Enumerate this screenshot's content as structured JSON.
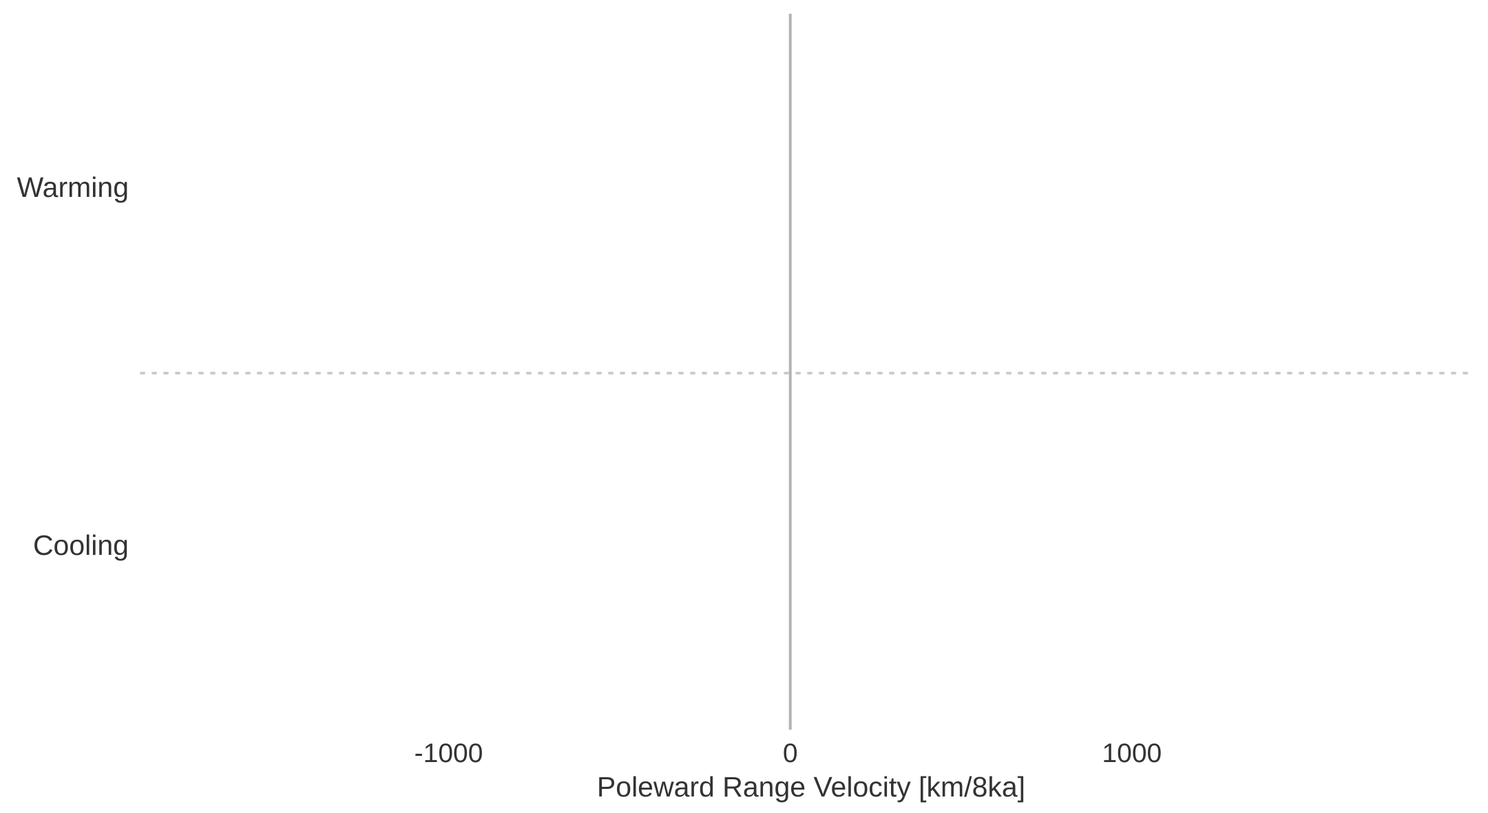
{
  "chart_data": {
    "type": "bar",
    "orientation": "horizontal",
    "categories": [
      "Warming",
      "Cooling"
    ],
    "series": [
      {
        "values": [
          0,
          0
        ]
      }
    ],
    "xlabel": "Poleward Range Velocity [km/8ka]",
    "ylabel": "",
    "xlim": [
      -1900,
      2000
    ],
    "xticks": [
      -1000,
      0,
      1000
    ],
    "xtick_labels": [
      "-1000",
      "0",
      "1000"
    ],
    "reference_line_x": 0,
    "category_separator": "dotted",
    "grid": false,
    "colors": {
      "text": "#333333",
      "zero_line": "#b3b3b3",
      "separator": "#cccccc"
    }
  }
}
